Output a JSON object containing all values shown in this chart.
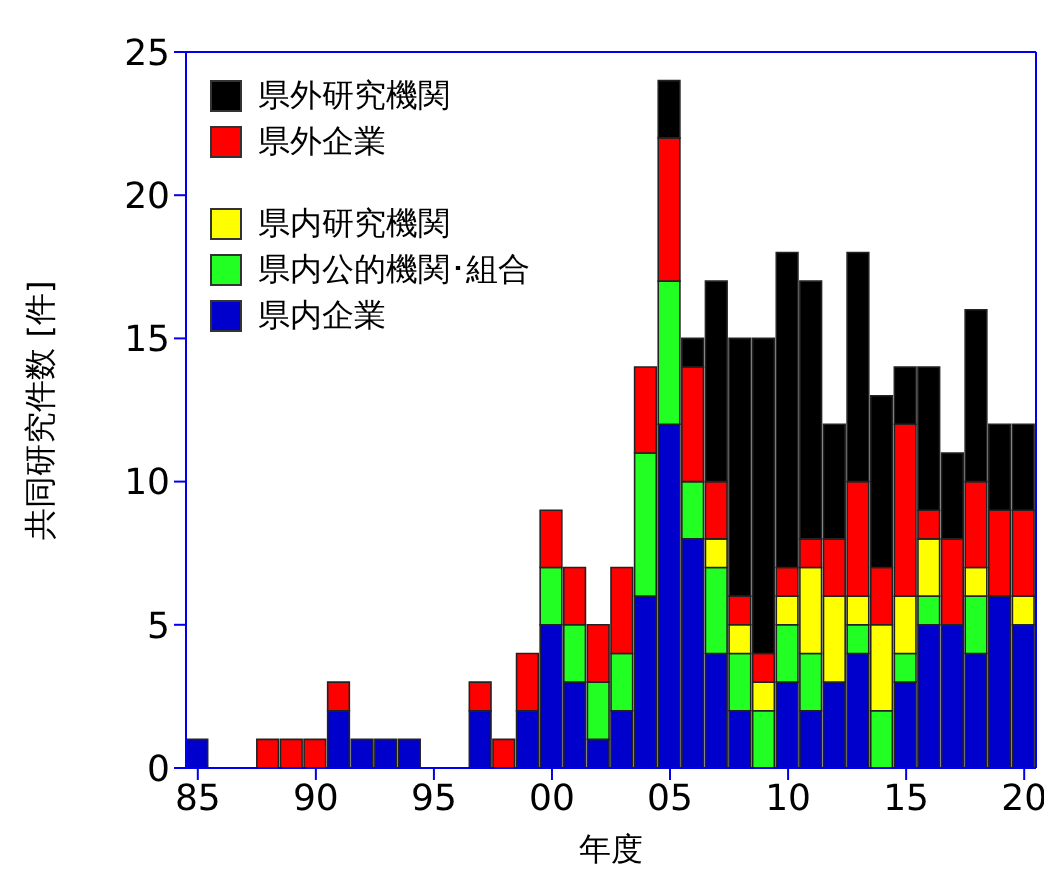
{
  "chart_data": {
    "type": "bar",
    "stacked": true,
    "xlabel": "年度",
    "ylabel": "共同研究件数 [件]",
    "x": [
      1985,
      1986,
      1987,
      1988,
      1989,
      1990,
      1991,
      1992,
      1993,
      1994,
      1995,
      1996,
      1997,
      1998,
      1999,
      2000,
      2001,
      2002,
      2003,
      2004,
      2005,
      2006,
      2007,
      2008,
      2009,
      2010,
      2011,
      2012,
      2013,
      2014,
      2015,
      2016,
      2017,
      2018,
      2019,
      2020
    ],
    "series": [
      {
        "name": "県内企業",
        "color": "#0000cc",
        "values": [
          1,
          0,
          0,
          0,
          0,
          0,
          2,
          1,
          1,
          1,
          0,
          0,
          2,
          0,
          2,
          5,
          3,
          1,
          2,
          6,
          12,
          8,
          4,
          2,
          0,
          3,
          2,
          3,
          4,
          0,
          3,
          5,
          5,
          4,
          6,
          5
        ]
      },
      {
        "name": "県内公的機関･組合",
        "color": "#22ff22",
        "values": [
          0,
          0,
          0,
          0,
          0,
          0,
          0,
          0,
          0,
          0,
          0,
          0,
          0,
          0,
          0,
          2,
          2,
          2,
          2,
          5,
          5,
          2,
          3,
          2,
          2,
          2,
          2,
          0,
          1,
          2,
          1,
          1,
          0,
          2,
          0,
          0
        ]
      },
      {
        "name": "県内研究機関",
        "color": "#ffff00",
        "values": [
          0,
          0,
          0,
          0,
          0,
          0,
          0,
          0,
          0,
          0,
          0,
          0,
          0,
          0,
          0,
          0,
          0,
          0,
          0,
          0,
          0,
          0,
          1,
          1,
          1,
          1,
          3,
          3,
          1,
          3,
          2,
          2,
          0,
          1,
          0,
          1
        ]
      },
      {
        "name": "県外企業",
        "color": "#ff0000",
        "values": [
          0,
          0,
          0,
          1,
          1,
          1,
          1,
          0,
          0,
          0,
          0,
          0,
          1,
          1,
          2,
          2,
          2,
          2,
          3,
          3,
          5,
          4,
          2,
          1,
          1,
          1,
          1,
          2,
          4,
          2,
          6,
          1,
          3,
          3,
          3,
          3
        ]
      },
      {
        "name": "県外研究機関",
        "color": "#000000",
        "values": [
          0,
          0,
          0,
          0,
          0,
          0,
          0,
          0,
          0,
          0,
          0,
          0,
          0,
          0,
          0,
          0,
          0,
          0,
          0,
          0,
          2,
          1,
          7,
          9,
          11,
          11,
          9,
          4,
          8,
          6,
          2,
          5,
          3,
          6,
          3,
          3
        ]
      }
    ],
    "xlim": [
      1984.5,
      2020.5
    ],
    "xticks": [
      {
        "value": 1985,
        "label": "85"
      },
      {
        "value": 1990,
        "label": "90"
      },
      {
        "value": 1995,
        "label": "95"
      },
      {
        "value": 2000,
        "label": "00"
      },
      {
        "value": 2005,
        "label": "05"
      },
      {
        "value": 2010,
        "label": "10"
      },
      {
        "value": 2015,
        "label": "15"
      },
      {
        "value": 2020,
        "label": "20"
      }
    ],
    "ylim": [
      0,
      25
    ],
    "yticks": [
      0,
      5,
      10,
      15,
      20,
      25
    ],
    "legend": "top left",
    "grid": false
  }
}
